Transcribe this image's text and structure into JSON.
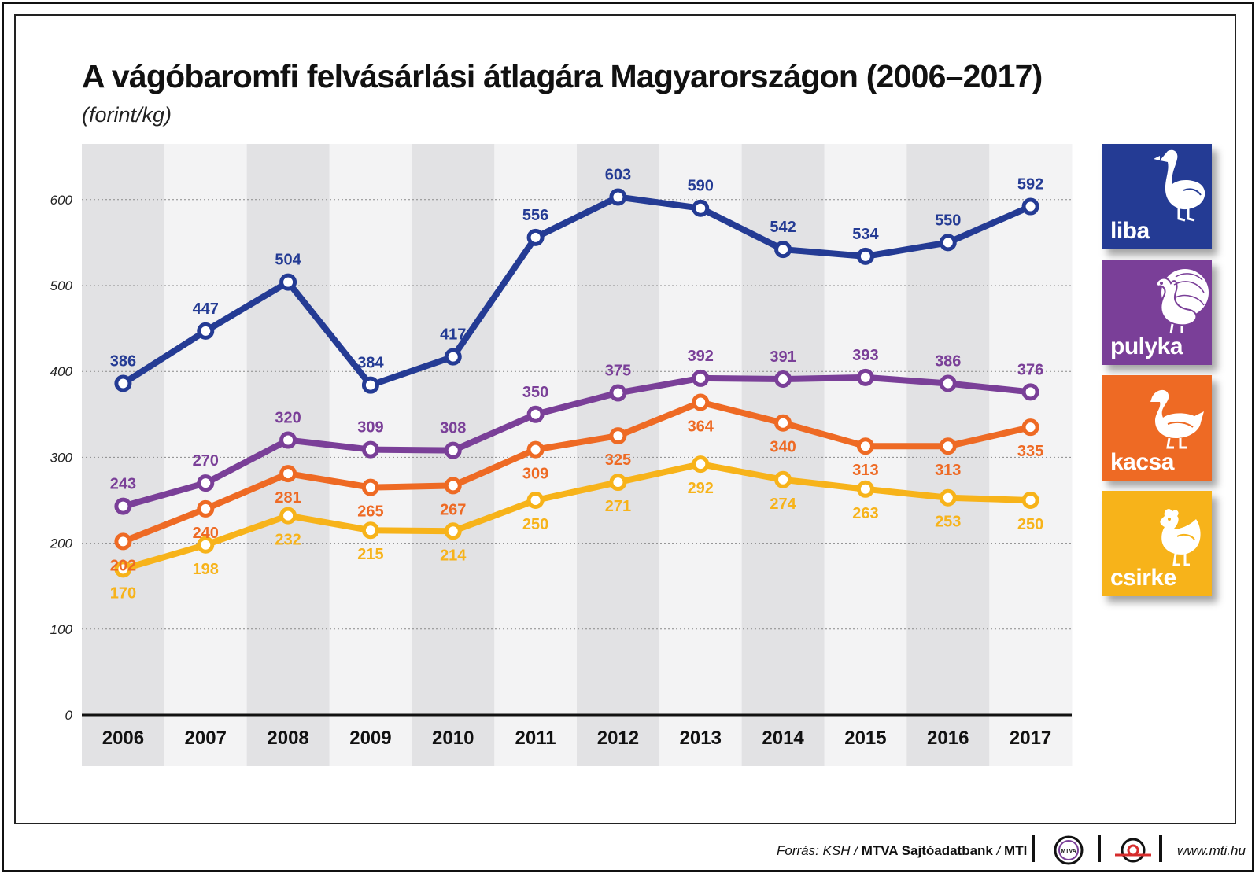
{
  "title": "A vágóbaromfi felvásárlási átlagára Magyarországon (2006–2017)",
  "subtitle": "(forint/kg)",
  "colors": {
    "liba": "#243b94",
    "pulyka": "#7a3f98",
    "kacsa": "#ee6a24",
    "csirke": "#f7b31a",
    "band_dark": "#e2e2e4",
    "band_light": "#f3f3f4"
  },
  "chart_data": {
    "type": "line",
    "title": "A vágóbaromfi felvásárlási átlagára Magyarországon (2006–2017)",
    "ylabel": "(forint/kg)",
    "xlabel": "",
    "categories": [
      "2006",
      "2007",
      "2008",
      "2009",
      "2010",
      "2011",
      "2012",
      "2013",
      "2014",
      "2015",
      "2016",
      "2017"
    ],
    "y_ticks": [
      0,
      100,
      200,
      300,
      400,
      500,
      600
    ],
    "ylim": [
      0,
      650
    ],
    "grid": true,
    "series": [
      {
        "name": "liba",
        "color": "#243b94",
        "label_pos": "above",
        "values": [
          386,
          447,
          504,
          384,
          417,
          556,
          603,
          590,
          542,
          534,
          550,
          592
        ]
      },
      {
        "name": "pulyka",
        "color": "#7a3f98",
        "label_pos": "above",
        "values": [
          243,
          270,
          320,
          309,
          308,
          350,
          375,
          392,
          391,
          393,
          386,
          376
        ]
      },
      {
        "name": "kacsa",
        "color": "#ee6a24",
        "label_pos": "below",
        "values": [
          202,
          240,
          281,
          265,
          267,
          309,
          325,
          364,
          340,
          313,
          313,
          335
        ]
      },
      {
        "name": "csirke",
        "color": "#f7b31a",
        "label_pos": "below",
        "values": [
          170,
          198,
          232,
          215,
          214,
          250,
          271,
          292,
          274,
          263,
          253,
          250
        ]
      }
    ]
  },
  "legend": [
    {
      "label": "liba",
      "icon": "goose-icon",
      "color": "#243b94"
    },
    {
      "label": "pulyka",
      "icon": "turkey-icon",
      "color": "#7a3f98"
    },
    {
      "label": "kacsa",
      "icon": "duck-icon",
      "color": "#ee6a24"
    },
    {
      "label": "csirke",
      "icon": "chicken-icon",
      "color": "#f7b31a"
    }
  ],
  "footer": {
    "source_prefix": "Forrás: KSH / ",
    "source_bold": "MTVA Sajtóadatbank",
    "source_sep": " / ",
    "source_mti": "MTI",
    "mtva_logo_text": "MTVA",
    "website": "www.mti.hu"
  }
}
